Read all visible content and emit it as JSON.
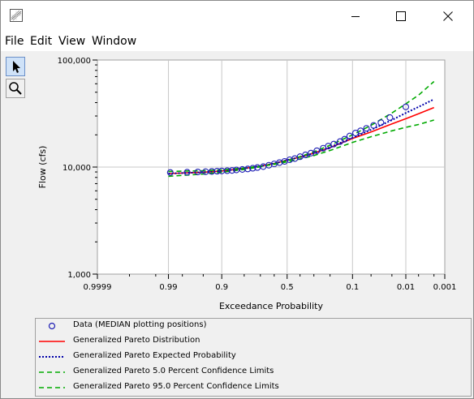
{
  "window": {
    "icon": "chart-app-icon",
    "controls": [
      "minimize-icon",
      "maximize-icon",
      "close-icon"
    ]
  },
  "menu": {
    "file": "File",
    "edit": "Edit",
    "view": "View",
    "window": "Window"
  },
  "tools": {
    "pointer": "pointer-arrow-icon",
    "zoom": "magnifier-icon"
  },
  "chart_data": {
    "type": "line",
    "title": "",
    "xlabel": "Exceedance Probability",
    "ylabel": "Flow (cfs)",
    "x_scale": "normal-probability",
    "y_scale": "log",
    "xlim": [
      0.9999,
      0.001
    ],
    "ylim": [
      1000,
      100000
    ],
    "x_ticks": [
      "0.9999",
      "0.99",
      "0.9",
      "0.5",
      "0.1",
      "0.01",
      "0.001"
    ],
    "y_ticks": [
      "1,000",
      "10,000",
      "100,000"
    ],
    "grid": true,
    "legend_position": "bottom",
    "series": [
      {
        "name": "Data (MEDIAN plotting positions)",
        "style": "circle-marker",
        "color": "#1f1fb4",
        "x": [
          0.989,
          0.975,
          0.96,
          0.945,
          0.93,
          0.915,
          0.9,
          0.88,
          0.86,
          0.84,
          0.81,
          0.78,
          0.75,
          0.72,
          0.68,
          0.64,
          0.6,
          0.56,
          0.52,
          0.48,
          0.44,
          0.4,
          0.36,
          0.32,
          0.28,
          0.24,
          0.21,
          0.18,
          0.15,
          0.13,
          0.11,
          0.09,
          0.075,
          0.06,
          0.045,
          0.033,
          0.022,
          0.01
        ],
        "y": [
          8900,
          8950,
          9000,
          9050,
          9100,
          9150,
          9200,
          9250,
          9300,
          9400,
          9500,
          9600,
          9750,
          9900,
          10100,
          10400,
          10700,
          11000,
          11300,
          11700,
          12000,
          12500,
          13000,
          13500,
          14200,
          15000,
          15700,
          16400,
          17300,
          18200,
          19500,
          20800,
          21800,
          23000,
          24500,
          26000,
          29000,
          36500
        ]
      },
      {
        "name": "Generalized Pareto Distribution",
        "style": "solid",
        "color": "#ff0000",
        "x": [
          0.99,
          0.95,
          0.9,
          0.8,
          0.7,
          0.6,
          0.5,
          0.4,
          0.3,
          0.2,
          0.1,
          0.05,
          0.02,
          0.01,
          0.005,
          0.002
        ],
        "y": [
          8700,
          8950,
          9200,
          9700,
          10200,
          10800,
          11600,
          12400,
          13500,
          15200,
          18500,
          21300,
          25300,
          28300,
          31500,
          36000
        ]
      },
      {
        "name": "Generalized Pareto Expected Probability",
        "style": "dotted",
        "color": "#0000aa",
        "x": [
          0.99,
          0.95,
          0.9,
          0.8,
          0.7,
          0.6,
          0.5,
          0.4,
          0.3,
          0.2,
          0.1,
          0.05,
          0.02,
          0.01,
          0.005,
          0.002
        ],
        "y": [
          8700,
          8950,
          9200,
          9700,
          10200,
          10800,
          11600,
          12400,
          13500,
          15300,
          18800,
          22300,
          27500,
          32000,
          36500,
          43000
        ]
      },
      {
        "name": "Generalized Pareto 5.0 Percent Confidence Limits",
        "style": "dashed",
        "color": "#00aa00",
        "x": [
          0.99,
          0.95,
          0.9,
          0.8,
          0.7,
          0.6,
          0.5,
          0.4,
          0.3,
          0.2,
          0.1,
          0.05,
          0.02,
          0.01,
          0.005,
          0.002
        ],
        "y": [
          8200,
          8600,
          8950,
          9500,
          10050,
          10700,
          11500,
          12500,
          13900,
          16000,
          20000,
          24500,
          32000,
          39000,
          47000,
          63000
        ]
      },
      {
        "name": "Generalized Pareto 95.0 Percent Confidence Limits",
        "style": "dashed",
        "color": "#00aa00",
        "x": [
          0.99,
          0.95,
          0.9,
          0.8,
          0.7,
          0.6,
          0.5,
          0.4,
          0.3,
          0.2,
          0.1,
          0.05,
          0.02,
          0.01,
          0.005,
          0.002
        ],
        "y": [
          9100,
          9250,
          9400,
          9800,
          10200,
          10600,
          11200,
          11900,
          12800,
          14300,
          17000,
          19200,
          21800,
          23500,
          25000,
          27500
        ]
      }
    ]
  },
  "legend": {
    "items": [
      {
        "label": "Data (MEDIAN plotting positions)",
        "style": "circle-marker",
        "color": "#1f1fb4"
      },
      {
        "label": "Generalized Pareto Distribution",
        "style": "solid",
        "color": "#ff0000"
      },
      {
        "label": "Generalized Pareto Expected Probability",
        "style": "dotted",
        "color": "#0000aa"
      },
      {
        "label": "Generalized Pareto 5.0 Percent Confidence Limits",
        "style": "dashed",
        "color": "#00aa00"
      },
      {
        "label": "Generalized Pareto 95.0 Percent Confidence Limits",
        "style": "dashed",
        "color": "#00aa00"
      }
    ]
  }
}
